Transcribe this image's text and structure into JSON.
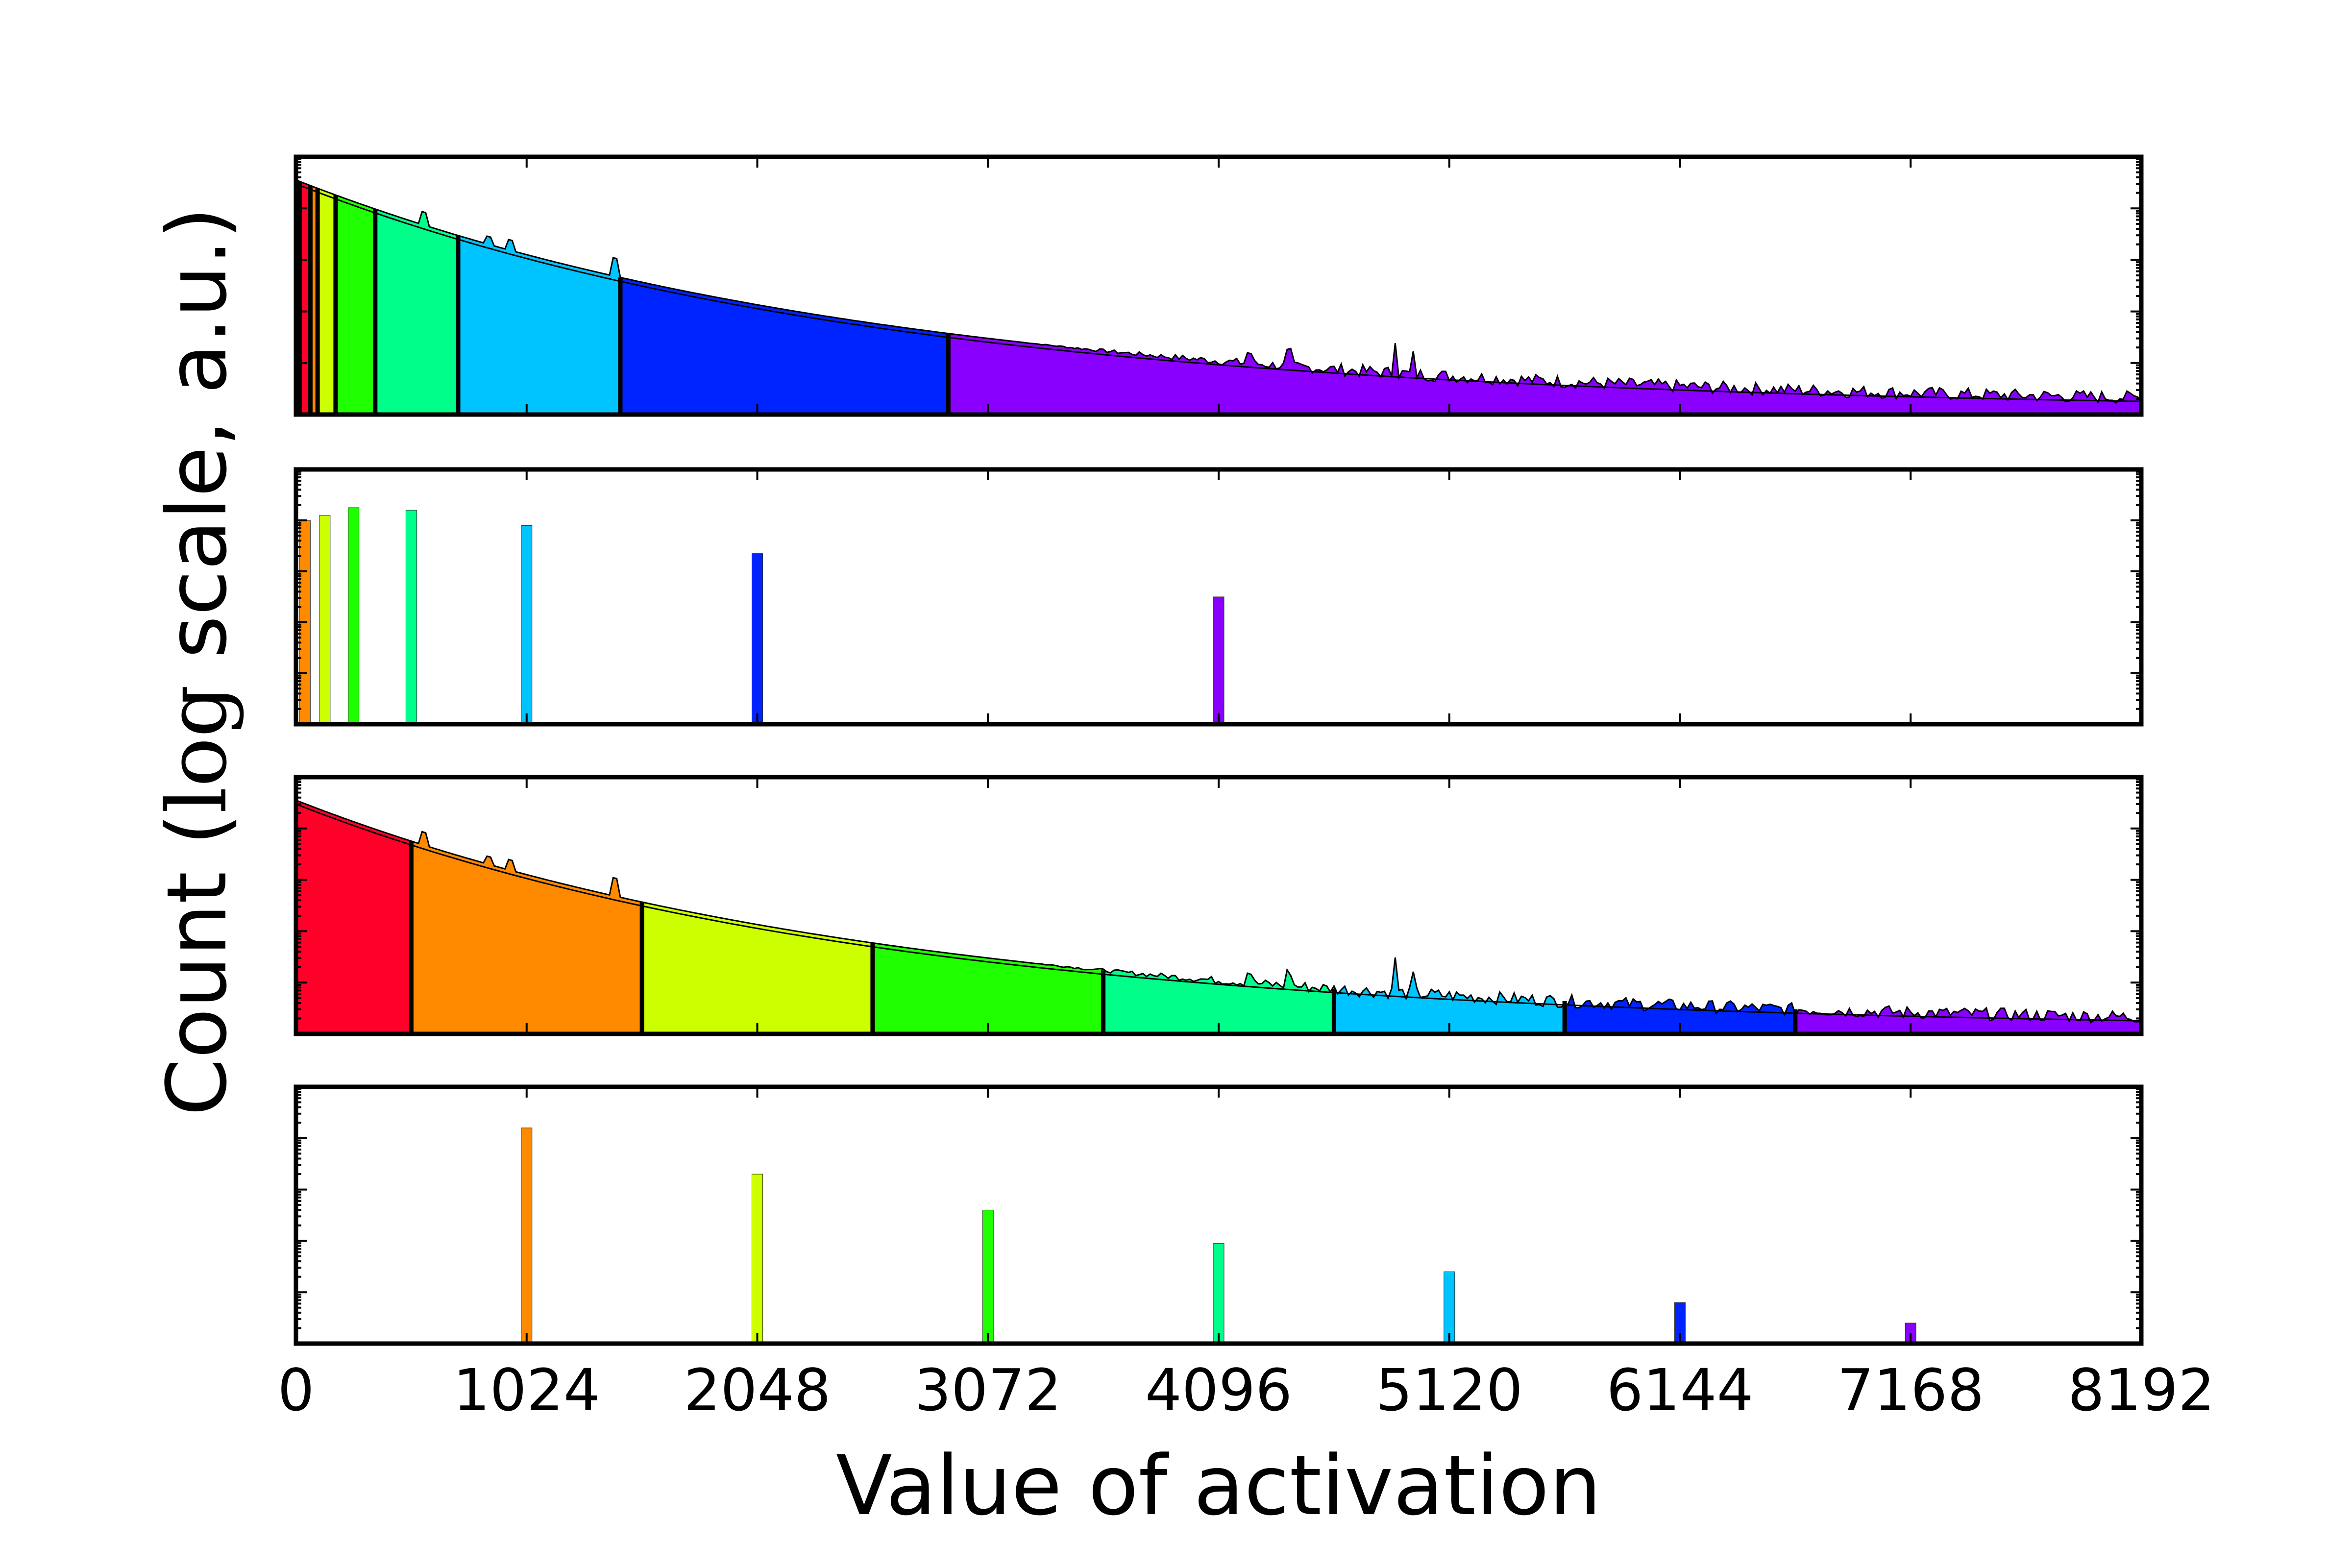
{
  "chart_data": {
    "type": "bar",
    "title": "",
    "xlabel": "Value of activation",
    "ylabel_parts": [
      "Count (",
      "log",
      " scale, a.u.)"
    ],
    "x_ticks": [
      0,
      1024,
      2048,
      3072,
      4096,
      5120,
      6144,
      7168,
      8192
    ],
    "xlim": [
      0,
      8192
    ],
    "colors": {
      "red": "#ff0029",
      "orange": "#ff8a00",
      "yellow": "#ccff00",
      "green": "#1fff00",
      "teal": "#00ff8a",
      "sky": "#00c4ff",
      "blue": "#0024ff",
      "violet": "#8a00ff"
    },
    "panels": [
      {
        "id": "panel-1",
        "kind": "histogram",
        "ylim": [
          0,
          1
        ],
        "distribution": {
          "start_level": 0.88,
          "decay": 0.00039,
          "floor": 0.02
        },
        "spikes": [
          {
            "x": 563,
            "height": 0.05
          },
          {
            "x": 860,
            "height": 0.03
          },
          {
            "x": 945,
            "height": 0.04
          },
          {
            "x": 1420,
            "height": 0.07
          },
          {
            "x": 4230,
            "height": 0.04
          },
          {
            "x": 4410,
            "height": 0.05
          },
          {
            "x": 4880,
            "height": 0.14
          },
          {
            "x": 4960,
            "height": 0.07
          }
        ],
        "bins": [
          {
            "start": 0,
            "end": 16,
            "color": "red"
          },
          {
            "start": 16,
            "end": 64,
            "color": "red"
          },
          {
            "start": 64,
            "end": 96,
            "color": "orange"
          },
          {
            "start": 96,
            "end": 176,
            "color": "yellow"
          },
          {
            "start": 176,
            "end": 352,
            "color": "green"
          },
          {
            "start": 352,
            "end": 720,
            "color": "teal"
          },
          {
            "start": 720,
            "end": 1440,
            "color": "sky"
          },
          {
            "start": 1440,
            "end": 2896,
            "color": "blue"
          },
          {
            "start": 2896,
            "end": 8192,
            "color": "violet"
          }
        ]
      },
      {
        "id": "panel-2",
        "kind": "quantized",
        "ylim": [
          0,
          1
        ],
        "bars": [
          {
            "x": 40,
            "value": 0.8,
            "color": "orange"
          },
          {
            "x": 128,
            "value": 0.82,
            "color": "yellow"
          },
          {
            "x": 256,
            "value": 0.85,
            "color": "green"
          },
          {
            "x": 512,
            "value": 0.84,
            "color": "teal"
          },
          {
            "x": 1024,
            "value": 0.78,
            "color": "sky"
          },
          {
            "x": 2048,
            "value": 0.67,
            "color": "blue"
          },
          {
            "x": 4096,
            "value": 0.5,
            "color": "violet"
          }
        ]
      },
      {
        "id": "panel-3",
        "kind": "histogram",
        "ylim": [
          0,
          1
        ],
        "distribution": {
          "start_level": 0.88,
          "decay": 0.00039,
          "floor": 0.02
        },
        "spikes": [
          {
            "x": 563,
            "height": 0.05
          },
          {
            "x": 860,
            "height": 0.03
          },
          {
            "x": 945,
            "height": 0.04
          },
          {
            "x": 1420,
            "height": 0.07
          },
          {
            "x": 4230,
            "height": 0.04
          },
          {
            "x": 4410,
            "height": 0.05
          },
          {
            "x": 4880,
            "height": 0.14
          },
          {
            "x": 4960,
            "height": 0.07
          }
        ],
        "bins": [
          {
            "start": 0,
            "end": 512,
            "color": "red"
          },
          {
            "start": 512,
            "end": 1536,
            "color": "orange"
          },
          {
            "start": 1536,
            "end": 2560,
            "color": "yellow"
          },
          {
            "start": 2560,
            "end": 3584,
            "color": "green"
          },
          {
            "start": 3584,
            "end": 4608,
            "color": "teal"
          },
          {
            "start": 4608,
            "end": 5632,
            "color": "sky"
          },
          {
            "start": 5632,
            "end": 6656,
            "color": "blue"
          },
          {
            "start": 6656,
            "end": 8192,
            "color": "violet"
          }
        ]
      },
      {
        "id": "panel-4",
        "kind": "quantized",
        "ylim": [
          0,
          1
        ],
        "bars": [
          {
            "x": 1024,
            "value": 0.84,
            "color": "orange"
          },
          {
            "x": 2048,
            "value": 0.66,
            "color": "yellow"
          },
          {
            "x": 3072,
            "value": 0.52,
            "color": "green"
          },
          {
            "x": 4096,
            "value": 0.39,
            "color": "teal"
          },
          {
            "x": 5120,
            "value": 0.28,
            "color": "sky"
          },
          {
            "x": 6144,
            "value": 0.16,
            "color": "blue"
          },
          {
            "x": 7168,
            "value": 0.08,
            "color": "violet"
          }
        ]
      }
    ]
  }
}
